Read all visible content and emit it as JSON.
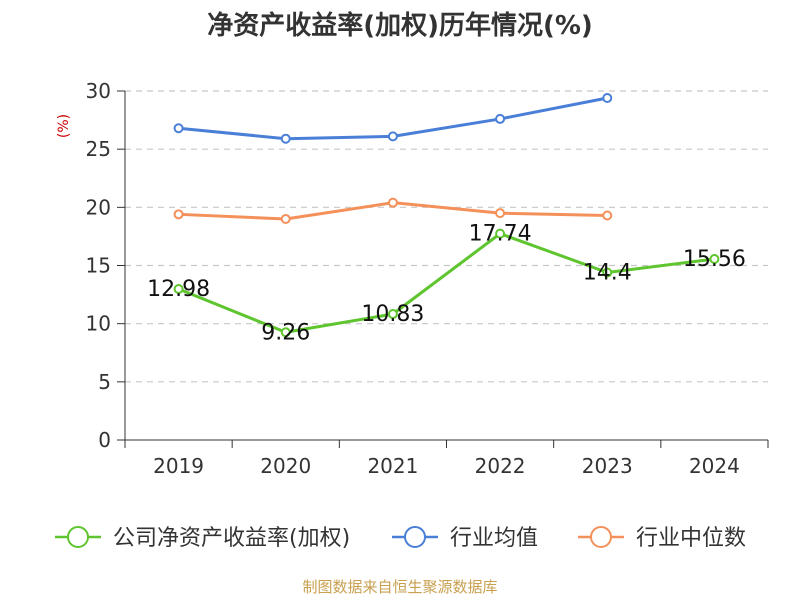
{
  "chart_data": {
    "type": "line",
    "title": "净资产收益率(加权)历年情况(%)",
    "ylabel": "(%)",
    "xlabel": "",
    "categories": [
      "2019",
      "2020",
      "2021",
      "2022",
      "2023",
      "2024"
    ],
    "ylim": [
      0,
      30
    ],
    "yticks": [
      0,
      5,
      10,
      15,
      20,
      25,
      30
    ],
    "grid": true,
    "legend_position": "bottom",
    "series": [
      {
        "name": "公司净资产收益率(加权)",
        "color": "#5ec52e",
        "values": [
          12.98,
          9.26,
          10.83,
          17.74,
          14.4,
          15.56
        ],
        "data_labels": [
          "12.98",
          "9.26",
          "10.83",
          "17.74",
          "14.4",
          "15.56"
        ]
      },
      {
        "name": "行业均值",
        "color": "#4a7fd8",
        "values": [
          26.8,
          25.9,
          26.1,
          27.6,
          29.4,
          null
        ]
      },
      {
        "name": "行业中位数",
        "color": "#f4905a",
        "values": [
          19.4,
          19.0,
          20.4,
          19.5,
          19.3,
          null
        ]
      }
    ]
  },
  "footer": {
    "source": "制图数据来自恒生聚源数据库"
  }
}
